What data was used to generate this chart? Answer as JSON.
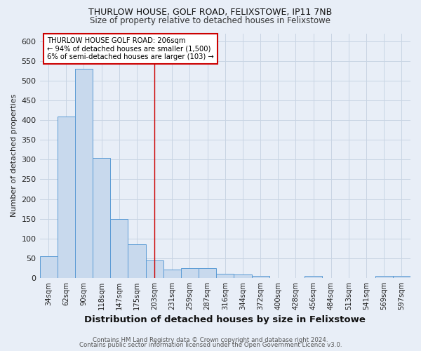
{
  "title": "THURLOW HOUSE, GOLF ROAD, FELIXSTOWE, IP11 7NB",
  "subtitle": "Size of property relative to detached houses in Felixstowe",
  "xlabel": "Distribution of detached houses by size in Felixstowe",
  "ylabel": "Number of detached properties",
  "footer_line1": "Contains HM Land Registry data © Crown copyright and database right 2024.",
  "footer_line2": "Contains public sector information licensed under the Open Government Licence v3.0.",
  "categories": [
    "34sqm",
    "62sqm",
    "90sqm",
    "118sqm",
    "147sqm",
    "175sqm",
    "203sqm",
    "231sqm",
    "259sqm",
    "287sqm",
    "316sqm",
    "344sqm",
    "372sqm",
    "400sqm",
    "428sqm",
    "456sqm",
    "484sqm",
    "513sqm",
    "541sqm",
    "569sqm",
    "597sqm"
  ],
  "values": [
    55,
    410,
    530,
    305,
    150,
    85,
    45,
    22,
    25,
    25,
    10,
    8,
    5,
    0,
    0,
    6,
    0,
    0,
    0,
    5,
    5
  ],
  "bar_color": "#c8d9ed",
  "bar_edge_color": "#5b9bd5",
  "grid_color": "#c8d4e3",
  "background_color": "#e8eef7",
  "marker_x_label": "203sqm",
  "marker_line_color": "#cc0000",
  "annotation_text_line1": "THURLOW HOUSE GOLF ROAD: 206sqm",
  "annotation_text_line2": "← 94% of detached houses are smaller (1,500)",
  "annotation_text_line3": "6% of semi-detached houses are larger (103) →",
  "annotation_box_color": "#ffffff",
  "annotation_border_color": "#cc0000",
  "ylim": [
    0,
    620
  ],
  "yticks": [
    0,
    50,
    100,
    150,
    200,
    250,
    300,
    350,
    400,
    450,
    500,
    550,
    600
  ]
}
